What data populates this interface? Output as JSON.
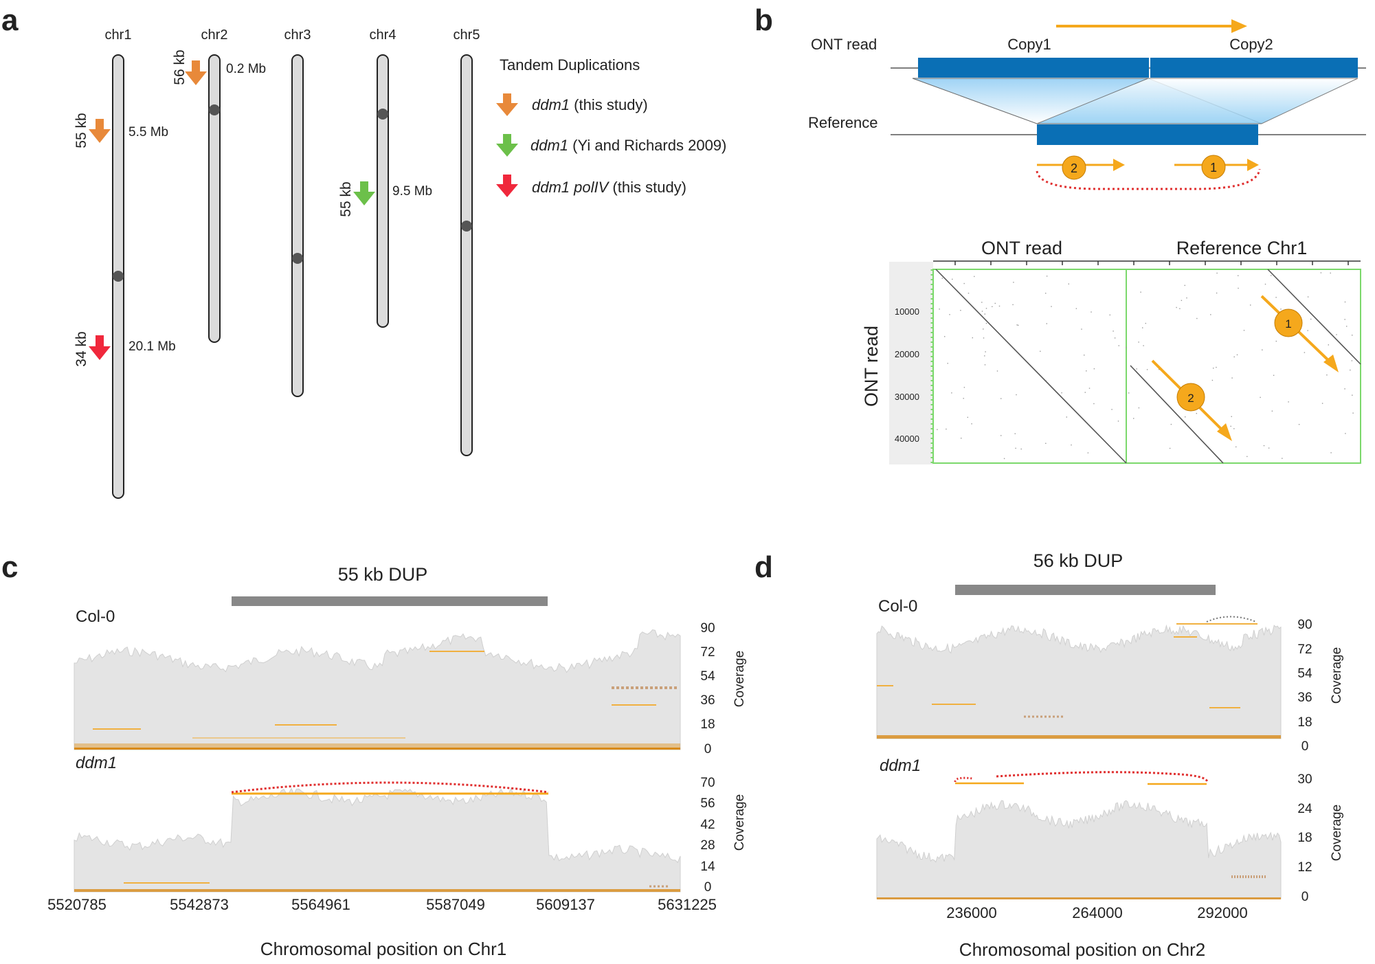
{
  "panel_a": {
    "label": "a",
    "chromosomes": [
      "chr1",
      "chr2",
      "chr3",
      "chr4",
      "chr5"
    ],
    "legend_title": "Tandem Duplications",
    "legend": [
      {
        "name": "ddm1",
        "note": "(this study)",
        "color": "#e8893a"
      },
      {
        "name": "ddm1",
        "note": "(Yi and Richards 2009)",
        "color": "#6cc04a"
      },
      {
        "name": "ddm1 polIV",
        "note": "(this study)",
        "color": "#f0283c"
      }
    ],
    "arrows": [
      {
        "size": "56 kb",
        "pos": "0.2 Mb",
        "chrom": "chr2",
        "color": "#e8893a"
      },
      {
        "size": "55 kb",
        "pos": "5.5 Mb",
        "chrom": "chr1",
        "color": "#e8893a"
      },
      {
        "size": "55 kb",
        "pos": "9.5 Mb",
        "chrom": "chr4",
        "color": "#6cc04a"
      },
      {
        "size": "34 kb",
        "pos": "20.1 Mb",
        "chrom": "chr1",
        "color": "#f0283c"
      }
    ]
  },
  "panel_b": {
    "label": "b",
    "ont_read": "ONT read",
    "copy1": "Copy1",
    "copy2": "Copy2",
    "reference": "Reference",
    "marker1": "1",
    "marker2": "2",
    "dotplot": {
      "col1": "ONT read",
      "col2": "Reference Chr1",
      "ylabel": "ONT read",
      "yticks": [
        "10000",
        "20000",
        "30000",
        "40000"
      ]
    }
  },
  "panel_c": {
    "label": "c",
    "dup_label": "55 kb DUP",
    "track1_label": "Col-0",
    "track2_label": "ddm1",
    "coverage_label": "Coverage",
    "xlabel": "Chromosomal position on Chr1",
    "col0_ticks": [
      "90",
      "72",
      "54",
      "36",
      "18",
      "0"
    ],
    "ddm1_ticks": [
      "70",
      "56",
      "42",
      "28",
      "14",
      "0"
    ],
    "xticks": [
      "5520785",
      "5542873",
      "5564961",
      "5587049",
      "5609137",
      "5631225"
    ]
  },
  "panel_d": {
    "label": "d",
    "dup_label": "56 kb DUP",
    "track1_label": "Col-0",
    "track2_label": "ddm1",
    "coverage_label": "Coverage",
    "xlabel": "Chromosomal position on Chr2",
    "col0_ticks": [
      "90",
      "72",
      "54",
      "36",
      "18",
      "0"
    ],
    "ddm1_ticks": [
      "30",
      "24",
      "18",
      "12",
      "0"
    ],
    "xticks": [
      "236000",
      "264000",
      "292000"
    ]
  },
  "colors": {
    "blue": "#0a6fb5",
    "orange": "#f5a81c",
    "track_gray": "#e4e4e4",
    "red_dotted": "#e03030"
  }
}
